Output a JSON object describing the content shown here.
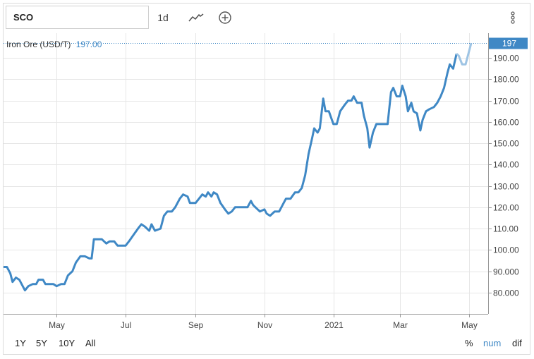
{
  "toolbar": {
    "symbol": "SCO",
    "interval": "1d",
    "chart_type_icon": "line-chart-icon",
    "add_icon": "plus-circle-icon",
    "menu_icon": "vertical-dots-icon"
  },
  "legend": {
    "name": "Iron Ore (USD/T)",
    "value": "197.00"
  },
  "price_tag": "197",
  "range_buttons": [
    "1Y",
    "5Y",
    "10Y",
    "All"
  ],
  "mode_buttons": [
    "%",
    "num",
    "dif"
  ],
  "colors": {
    "line": "#3f88c5",
    "line_light": "#9ec4e4",
    "grid": "#e6e6e6",
    "axis": "#999999",
    "active": "#3f88c5"
  },
  "chart_data": {
    "type": "line",
    "ylim": [
      70,
      200
    ],
    "yticks": [
      "80.000",
      "90.000",
      "100.00",
      "110.00",
      "120.00",
      "130.00",
      "140.00",
      "150.00",
      "160.00",
      "170.00",
      "180.00",
      "190.00"
    ],
    "ytick_values": [
      80,
      90,
      100,
      110,
      120,
      130,
      140,
      150,
      160,
      170,
      180,
      190
    ],
    "xlim": [
      "2020-03-15",
      "2021-05-18"
    ],
    "xticks": [
      {
        "label": "May",
        "date": "2020-05-01"
      },
      {
        "label": "Jul",
        "date": "2020-07-01"
      },
      {
        "label": "Sep",
        "date": "2020-09-01"
      },
      {
        "label": "Nov",
        "date": "2020-11-01"
      },
      {
        "label": "2021",
        "date": "2021-01-01"
      },
      {
        "label": "Mar",
        "date": "2021-03-01"
      },
      {
        "label": "May",
        "date": "2021-05-01"
      }
    ],
    "series": [
      {
        "name": "Iron Ore (USD/T)",
        "points": [
          [
            "2020-03-15",
            92
          ],
          [
            "2020-03-18",
            92
          ],
          [
            "2020-03-21",
            89
          ],
          [
            "2020-03-23",
            85
          ],
          [
            "2020-03-26",
            87
          ],
          [
            "2020-03-29",
            86
          ],
          [
            "2020-04-01",
            83
          ],
          [
            "2020-04-03",
            81
          ],
          [
            "2020-04-06",
            83
          ],
          [
            "2020-04-10",
            84
          ],
          [
            "2020-04-13",
            84
          ],
          [
            "2020-04-15",
            86
          ],
          [
            "2020-04-19",
            86
          ],
          [
            "2020-04-21",
            84
          ],
          [
            "2020-04-25",
            84
          ],
          [
            "2020-04-28",
            84
          ],
          [
            "2020-05-01",
            83
          ],
          [
            "2020-05-05",
            84
          ],
          [
            "2020-05-08",
            84
          ],
          [
            "2020-05-11",
            88
          ],
          [
            "2020-05-15",
            90
          ],
          [
            "2020-05-18",
            94
          ],
          [
            "2020-05-22",
            97
          ],
          [
            "2020-05-26",
            97
          ],
          [
            "2020-05-30",
            96
          ],
          [
            "2020-06-01",
            96
          ],
          [
            "2020-06-03",
            105
          ],
          [
            "2020-06-07",
            105
          ],
          [
            "2020-06-10",
            105
          ],
          [
            "2020-06-14",
            103
          ],
          [
            "2020-06-17",
            104
          ],
          [
            "2020-06-21",
            104
          ],
          [
            "2020-06-24",
            102
          ],
          [
            "2020-06-27",
            102
          ],
          [
            "2020-07-01",
            102
          ],
          [
            "2020-07-04",
            104
          ],
          [
            "2020-07-08",
            107
          ],
          [
            "2020-07-12",
            110
          ],
          [
            "2020-07-15",
            112
          ],
          [
            "2020-07-18",
            111
          ],
          [
            "2020-07-22",
            109
          ],
          [
            "2020-07-24",
            112
          ],
          [
            "2020-07-27",
            109
          ],
          [
            "2020-08-01",
            110
          ],
          [
            "2020-08-04",
            116
          ],
          [
            "2020-08-07",
            118
          ],
          [
            "2020-08-11",
            118
          ],
          [
            "2020-08-14",
            120
          ],
          [
            "2020-08-18",
            124
          ],
          [
            "2020-08-21",
            126
          ],
          [
            "2020-08-25",
            125
          ],
          [
            "2020-08-27",
            122
          ],
          [
            "2020-09-01",
            122
          ],
          [
            "2020-09-04",
            124
          ],
          [
            "2020-09-07",
            126
          ],
          [
            "2020-09-10",
            125
          ],
          [
            "2020-09-12",
            127
          ],
          [
            "2020-09-15",
            125
          ],
          [
            "2020-09-17",
            127
          ],
          [
            "2020-09-20",
            126
          ],
          [
            "2020-09-23",
            122
          ],
          [
            "2020-09-27",
            119
          ],
          [
            "2020-09-30",
            117
          ],
          [
            "2020-10-03",
            118
          ],
          [
            "2020-10-06",
            120
          ],
          [
            "2020-10-13",
            120
          ],
          [
            "2020-10-17",
            120
          ],
          [
            "2020-10-20",
            123
          ],
          [
            "2020-10-22",
            121
          ],
          [
            "2020-10-26",
            119
          ],
          [
            "2020-10-28",
            118
          ],
          [
            "2020-11-01",
            119
          ],
          [
            "2020-11-03",
            117
          ],
          [
            "2020-11-06",
            116
          ],
          [
            "2020-11-10",
            118
          ],
          [
            "2020-11-14",
            118
          ],
          [
            "2020-11-17",
            121
          ],
          [
            "2020-11-20",
            124
          ],
          [
            "2020-11-24",
            124
          ],
          [
            "2020-11-28",
            127
          ],
          [
            "2020-12-01",
            127
          ],
          [
            "2020-12-04",
            129
          ],
          [
            "2020-12-07",
            135
          ],
          [
            "2020-12-10",
            145
          ],
          [
            "2020-12-13",
            152
          ],
          [
            "2020-12-15",
            157
          ],
          [
            "2020-12-18",
            155
          ],
          [
            "2020-12-20",
            157
          ],
          [
            "2020-12-23",
            171
          ],
          [
            "2020-12-25",
            165
          ],
          [
            "2020-12-28",
            165
          ],
          [
            "2021-01-01",
            159
          ],
          [
            "2021-01-04",
            159
          ],
          [
            "2021-01-07",
            165
          ],
          [
            "2021-01-11",
            168
          ],
          [
            "2021-01-14",
            170
          ],
          [
            "2021-01-17",
            170
          ],
          [
            "2021-01-19",
            172
          ],
          [
            "2021-01-22",
            169
          ],
          [
            "2021-01-26",
            169
          ],
          [
            "2021-01-28",
            163
          ],
          [
            "2021-01-31",
            157
          ],
          [
            "2021-02-02",
            148
          ],
          [
            "2021-02-05",
            155
          ],
          [
            "2021-02-08",
            159
          ],
          [
            "2021-02-14",
            159
          ],
          [
            "2021-02-18",
            159
          ],
          [
            "2021-02-21",
            174
          ],
          [
            "2021-02-23",
            176
          ],
          [
            "2021-02-26",
            172
          ],
          [
            "2021-03-01",
            172
          ],
          [
            "2021-03-03",
            177
          ],
          [
            "2021-03-06",
            172
          ],
          [
            "2021-03-08",
            165
          ],
          [
            "2021-03-11",
            169
          ],
          [
            "2021-03-13",
            165
          ],
          [
            "2021-03-16",
            164
          ],
          [
            "2021-03-19",
            156
          ],
          [
            "2021-03-21",
            161
          ],
          [
            "2021-03-24",
            165
          ],
          [
            "2021-03-27",
            166
          ],
          [
            "2021-03-31",
            167
          ],
          [
            "2021-04-03",
            169
          ],
          [
            "2021-04-06",
            172
          ],
          [
            "2021-04-09",
            176
          ],
          [
            "2021-04-12",
            183
          ],
          [
            "2021-04-14",
            187
          ],
          [
            "2021-04-17",
            185
          ],
          [
            "2021-04-20",
            192
          ],
          [
            "2021-04-22",
            191
          ],
          [
            "2021-04-25",
            187
          ],
          [
            "2021-04-28",
            187
          ],
          [
            "2021-05-03",
            197
          ]
        ]
      }
    ]
  }
}
